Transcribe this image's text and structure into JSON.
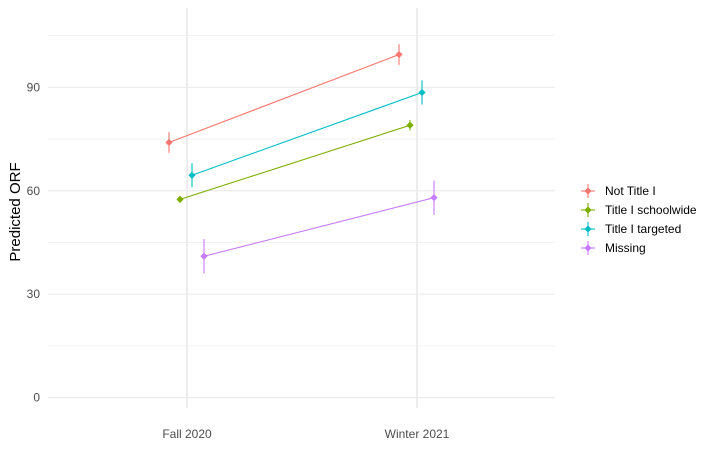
{
  "chart_data": {
    "type": "line",
    "xlabel": "",
    "ylabel": "Predicted ORF",
    "categories": [
      "Fall 2020",
      "Winter 2021"
    ],
    "ylim": [
      -3,
      113
    ],
    "yticks": [
      0,
      30,
      60,
      90
    ],
    "grid": true,
    "legend_position": "right",
    "series": [
      {
        "name": "Not Title I",
        "color": "#F8766D",
        "values": [
          74,
          99.5
        ],
        "ci": [
          [
            71,
            77
          ],
          [
            96.5,
            102.5
          ]
        ]
      },
      {
        "name": "Title I schoolwide",
        "color": "#7CAE00",
        "values": [
          57.5,
          79
        ],
        "ci": [
          [
            56.5,
            58.5
          ],
          [
            77.5,
            80.5
          ]
        ]
      },
      {
        "name": "Title I targeted",
        "color": "#00BFC4",
        "values": [
          64.5,
          88.5
        ],
        "ci": [
          [
            61,
            68
          ],
          [
            85,
            92
          ]
        ]
      },
      {
        "name": "Missing",
        "color": "#C77CFF",
        "values": [
          41,
          58
        ],
        "ci": [
          [
            36,
            46
          ],
          [
            53,
            63
          ]
        ]
      }
    ]
  }
}
